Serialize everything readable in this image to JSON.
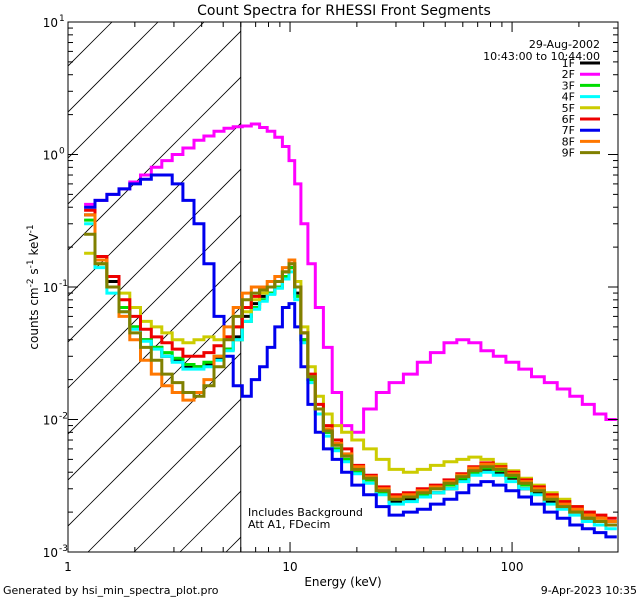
{
  "chart_data": {
    "type": "line",
    "title": "Count Spectra for RHESSI Front Segments",
    "xlabel": "Energy (keV)",
    "ylabel_parts": [
      "counts cm",
      "-2",
      " s",
      "-1",
      " keV",
      "-1"
    ],
    "xscale": "log",
    "yscale": "log",
    "xlim": [
      1,
      300
    ],
    "ylim": [
      0.001,
      10
    ],
    "x_ticks": [
      {
        "value": 1,
        "label": "1"
      },
      {
        "value": 10,
        "label": "10"
      },
      {
        "value": 100,
        "label": "100"
      }
    ],
    "y_ticks": [
      {
        "value": 0.001,
        "base": "10",
        "exp": "-3"
      },
      {
        "value": 0.01,
        "base": "10",
        "exp": "-2"
      },
      {
        "value": 0.1,
        "base": "10",
        "exp": "-1"
      },
      {
        "value": 1,
        "base": "10",
        "exp": "0"
      },
      {
        "value": 10,
        "base": "10",
        "exp": "1"
      }
    ],
    "hatched_region_xmax_keV": 6,
    "date": "29-Aug-2002",
    "time_range": "10:43:00 to 10:44:00",
    "note_lines": [
      "Includes Background",
      "Att A1, FDecim"
    ],
    "series": [
      {
        "name": "1F",
        "color": "#000000",
        "x": [
          1.25,
          1.4,
          1.6,
          1.8,
          2,
          2.25,
          2.5,
          2.8,
          3.1,
          3.5,
          3.9,
          4.3,
          4.8,
          5.3,
          5.8,
          6.4,
          7,
          7.6,
          8.2,
          8.9,
          9.6,
          10.2,
          10.8,
          11.6,
          12.5,
          13.5,
          14.8,
          16.2,
          18,
          20,
          23,
          26,
          30,
          35,
          40,
          46,
          53,
          60,
          68,
          77,
          88,
          100,
          115,
          130,
          150,
          170,
          195,
          220,
          250,
          280
        ],
        "y": [
          0.35,
          0.16,
          0.11,
          0.07,
          0.05,
          0.04,
          0.035,
          0.03,
          0.028,
          0.025,
          0.025,
          0.026,
          0.029,
          0.034,
          0.042,
          0.06,
          0.075,
          0.085,
          0.09,
          0.1,
          0.12,
          0.14,
          0.09,
          0.04,
          0.02,
          0.012,
          0.008,
          0.006,
          0.005,
          0.004,
          0.0035,
          0.0028,
          0.0024,
          0.0025,
          0.0026,
          0.0028,
          0.003,
          0.0035,
          0.004,
          0.0042,
          0.004,
          0.0036,
          0.003,
          0.0028,
          0.0024,
          0.0022,
          0.002,
          0.0018,
          0.0017,
          0.0016
        ]
      },
      {
        "name": "2F",
        "color": "#ff00ff",
        "x": [
          1.25,
          1.4,
          1.6,
          1.8,
          2,
          2.25,
          2.5,
          2.8,
          3.1,
          3.5,
          3.9,
          4.3,
          4.8,
          5.3,
          5.8,
          6.4,
          7,
          7.6,
          8.2,
          8.9,
          9.6,
          10.2,
          10.8,
          11.6,
          12.5,
          13.5,
          14.8,
          16.2,
          18,
          20,
          23,
          26,
          30,
          35,
          40,
          46,
          53,
          60,
          68,
          77,
          88,
          100,
          115,
          130,
          150,
          170,
          195,
          220,
          250,
          280
        ],
        "y": [
          0.42,
          0.45,
          0.5,
          0.55,
          0.62,
          0.7,
          0.8,
          0.9,
          1.0,
          1.12,
          1.28,
          1.38,
          1.5,
          1.58,
          1.62,
          1.64,
          1.7,
          1.6,
          1.5,
          1.35,
          1.15,
          0.9,
          0.6,
          0.3,
          0.15,
          0.07,
          0.035,
          0.016,
          0.009,
          0.008,
          0.012,
          0.016,
          0.019,
          0.022,
          0.027,
          0.032,
          0.038,
          0.04,
          0.038,
          0.033,
          0.03,
          0.027,
          0.024,
          0.021,
          0.019,
          0.017,
          0.015,
          0.013,
          0.011,
          0.01
        ]
      },
      {
        "name": "3F",
        "color": "#00dd00",
        "x": [
          1.25,
          1.4,
          1.6,
          1.8,
          2,
          2.25,
          2.5,
          2.8,
          3.1,
          3.5,
          3.9,
          4.3,
          4.8,
          5.3,
          5.8,
          6.4,
          7,
          7.6,
          8.2,
          8.9,
          9.6,
          10.2,
          10.8,
          11.6,
          12.5,
          13.5,
          14.8,
          16.2,
          18,
          20,
          23,
          26,
          30,
          35,
          40,
          46,
          53,
          60,
          68,
          77,
          88,
          100,
          115,
          130,
          150,
          170,
          195,
          220,
          250,
          280
        ],
        "y": [
          0.32,
          0.15,
          0.1,
          0.07,
          0.05,
          0.04,
          0.035,
          0.032,
          0.029,
          0.026,
          0.025,
          0.027,
          0.03,
          0.034,
          0.04,
          0.055,
          0.07,
          0.08,
          0.09,
          0.1,
          0.12,
          0.14,
          0.085,
          0.04,
          0.02,
          0.012,
          0.008,
          0.006,
          0.005,
          0.004,
          0.0035,
          0.0028,
          0.0025,
          0.0026,
          0.0027,
          0.003,
          0.0032,
          0.0036,
          0.004,
          0.0043,
          0.0041,
          0.0037,
          0.0032,
          0.0029,
          0.0025,
          0.0023,
          0.0021,
          0.0019,
          0.0018,
          0.0017
        ]
      },
      {
        "name": "4F",
        "color": "#00ffff",
        "x": [
          1.25,
          1.4,
          1.6,
          1.8,
          2,
          2.25,
          2.5,
          2.8,
          3.1,
          3.5,
          3.9,
          4.3,
          4.8,
          5.3,
          5.8,
          6.4,
          7,
          7.6,
          8.2,
          8.9,
          9.6,
          10.2,
          10.8,
          11.6,
          12.5,
          13.5,
          14.8,
          16.2,
          18,
          20,
          23,
          26,
          30,
          35,
          40,
          46,
          53,
          60,
          68,
          77,
          88,
          100,
          115,
          130,
          150,
          170,
          195,
          220,
          250,
          280
        ],
        "y": [
          0.3,
          0.14,
          0.09,
          0.065,
          0.048,
          0.039,
          0.034,
          0.03,
          0.027,
          0.024,
          0.024,
          0.025,
          0.028,
          0.033,
          0.04,
          0.055,
          0.068,
          0.078,
          0.088,
          0.098,
          0.115,
          0.13,
          0.08,
          0.038,
          0.019,
          0.011,
          0.0075,
          0.0058,
          0.0048,
          0.0039,
          0.0033,
          0.0027,
          0.0023,
          0.0024,
          0.0026,
          0.0028,
          0.003,
          0.0034,
          0.0038,
          0.004,
          0.0038,
          0.0034,
          0.003,
          0.0027,
          0.0023,
          0.0021,
          0.0019,
          0.0017,
          0.0016,
          0.0015
        ]
      },
      {
        "name": "5F",
        "color": "#cccc00",
        "x": [
          1.25,
          1.4,
          1.6,
          1.8,
          2,
          2.25,
          2.5,
          2.8,
          3.1,
          3.5,
          3.9,
          4.3,
          4.8,
          5.3,
          5.8,
          6.4,
          7,
          7.6,
          8.2,
          8.9,
          9.6,
          10.2,
          10.8,
          11.6,
          12.5,
          13.5,
          14.8,
          16.2,
          18,
          20,
          23,
          26,
          30,
          35,
          40,
          46,
          53,
          60,
          68,
          77,
          88,
          100,
          115,
          130,
          150,
          170,
          195,
          220,
          250,
          280
        ],
        "y": [
          0.18,
          0.17,
          0.12,
          0.09,
          0.07,
          0.055,
          0.05,
          0.045,
          0.04,
          0.038,
          0.04,
          0.042,
          0.04,
          0.042,
          0.05,
          0.065,
          0.08,
          0.09,
          0.1,
          0.11,
          0.13,
          0.16,
          0.11,
          0.05,
          0.025,
          0.015,
          0.011,
          0.009,
          0.008,
          0.007,
          0.006,
          0.005,
          0.0042,
          0.004,
          0.0042,
          0.0045,
          0.0048,
          0.005,
          0.0052,
          0.005,
          0.0046,
          0.0041,
          0.0036,
          0.0032,
          0.0028,
          0.0025,
          0.0022,
          0.002,
          0.0018,
          0.0017
        ]
      },
      {
        "name": "6F",
        "color": "#ee0000",
        "x": [
          1.25,
          1.4,
          1.6,
          1.8,
          2,
          2.25,
          2.5,
          2.8,
          3.1,
          3.5,
          3.9,
          4.3,
          4.8,
          5.3,
          5.8,
          6.4,
          7,
          7.6,
          8.2,
          8.9,
          9.6,
          10.2,
          10.8,
          11.6,
          12.5,
          13.5,
          14.8,
          16.2,
          18,
          20,
          23,
          26,
          30,
          35,
          40,
          46,
          53,
          60,
          68,
          77,
          88,
          100,
          115,
          130,
          150,
          170,
          195,
          220,
          250,
          280
        ],
        "y": [
          0.38,
          0.17,
          0.12,
          0.08,
          0.06,
          0.048,
          0.042,
          0.038,
          0.034,
          0.03,
          0.03,
          0.032,
          0.036,
          0.042,
          0.05,
          0.07,
          0.085,
          0.095,
          0.1,
          0.11,
          0.13,
          0.15,
          0.1,
          0.045,
          0.022,
          0.013,
          0.009,
          0.007,
          0.006,
          0.0045,
          0.0038,
          0.0031,
          0.0027,
          0.0028,
          0.003,
          0.0032,
          0.0035,
          0.0039,
          0.0044,
          0.0047,
          0.0044,
          0.004,
          0.0035,
          0.0031,
          0.0027,
          0.0024,
          0.0022,
          0.002,
          0.0019,
          0.0018
        ]
      },
      {
        "name": "7F",
        "color": "#0000ee",
        "x": [
          1.25,
          1.4,
          1.6,
          1.8,
          2,
          2.25,
          2.5,
          2.8,
          3.1,
          3.5,
          3.9,
          4.3,
          4.8,
          5.3,
          5.8,
          6.4,
          7,
          7.6,
          8.2,
          8.9,
          9.6,
          10.2,
          10.8,
          11.6,
          12.5,
          13.5,
          14.8,
          16.2,
          18,
          20,
          23,
          26,
          30,
          35,
          40,
          46,
          53,
          60,
          68,
          77,
          88,
          100,
          115,
          130,
          150,
          170,
          195,
          220,
          250,
          280
        ],
        "y": [
          0.4,
          0.45,
          0.5,
          0.55,
          0.6,
          0.65,
          0.7,
          0.7,
          0.6,
          0.45,
          0.3,
          0.15,
          0.06,
          0.03,
          0.018,
          0.015,
          0.02,
          0.025,
          0.035,
          0.05,
          0.07,
          0.075,
          0.05,
          0.025,
          0.013,
          0.008,
          0.006,
          0.005,
          0.004,
          0.0032,
          0.0027,
          0.0022,
          0.0019,
          0.002,
          0.0021,
          0.0023,
          0.0025,
          0.0028,
          0.0032,
          0.0034,
          0.0032,
          0.0029,
          0.0026,
          0.0023,
          0.002,
          0.0018,
          0.0016,
          0.0015,
          0.0014,
          0.0013
        ]
      },
      {
        "name": "8F",
        "color": "#ff7700",
        "x": [
          1.25,
          1.4,
          1.6,
          1.8,
          2,
          2.25,
          2.5,
          2.8,
          3.1,
          3.5,
          3.9,
          4.3,
          4.8,
          5.3,
          5.8,
          6.4,
          7,
          7.6,
          8.2,
          8.9,
          9.6,
          10.2,
          10.8,
          11.6,
          12.5,
          13.5,
          14.8,
          16.2,
          18,
          20,
          23,
          26,
          30,
          35,
          40,
          46,
          53,
          60,
          68,
          77,
          88,
          100,
          115,
          130,
          150,
          170,
          195,
          220,
          250,
          280
        ],
        "y": [
          0.35,
          0.16,
          0.1,
          0.06,
          0.04,
          0.028,
          0.022,
          0.018,
          0.016,
          0.014,
          0.016,
          0.02,
          0.03,
          0.05,
          0.07,
          0.09,
          0.1,
          0.1,
          0.11,
          0.12,
          0.14,
          0.16,
          0.1,
          0.045,
          0.021,
          0.012,
          0.0085,
          0.0066,
          0.0055,
          0.0044,
          0.0037,
          0.003,
          0.0026,
          0.0027,
          0.0029,
          0.0031,
          0.0034,
          0.0038,
          0.0043,
          0.0046,
          0.0043,
          0.0039,
          0.0034,
          0.003,
          0.0026,
          0.0023,
          0.0021,
          0.0019,
          0.0018,
          0.0017
        ]
      },
      {
        "name": "9F",
        "color": "#808000",
        "x": [
          1.25,
          1.4,
          1.6,
          1.8,
          2,
          2.25,
          2.5,
          2.8,
          3.1,
          3.5,
          3.9,
          4.3,
          4.8,
          5.3,
          5.8,
          6.4,
          7,
          7.6,
          8.2,
          8.9,
          9.6,
          10.2,
          10.8,
          11.6,
          12.5,
          13.5,
          14.8,
          16.2,
          18,
          20,
          23,
          26,
          30,
          35,
          40,
          46,
          53,
          60,
          68,
          77,
          88,
          100,
          115,
          130,
          150,
          170,
          195,
          220,
          250,
          280
        ],
        "y": [
          0.25,
          0.15,
          0.1,
          0.065,
          0.045,
          0.035,
          0.028,
          0.022,
          0.019,
          0.016,
          0.015,
          0.018,
          0.025,
          0.04,
          0.06,
          0.08,
          0.09,
          0.095,
          0.1,
          0.11,
          0.13,
          0.15,
          0.1,
          0.045,
          0.021,
          0.012,
          0.0082,
          0.0064,
          0.0053,
          0.0042,
          0.0036,
          0.0029,
          0.0025,
          0.0026,
          0.0028,
          0.003,
          0.0033,
          0.0037,
          0.0041,
          0.0044,
          0.0042,
          0.0038,
          0.0033,
          0.0029,
          0.0025,
          0.0022,
          0.002,
          0.0018,
          0.0017,
          0.0016
        ]
      }
    ]
  },
  "footer": {
    "left": "Generated by hsi_min_spectra_plot.pro",
    "right": "9-Apr-2023 10:35"
  }
}
